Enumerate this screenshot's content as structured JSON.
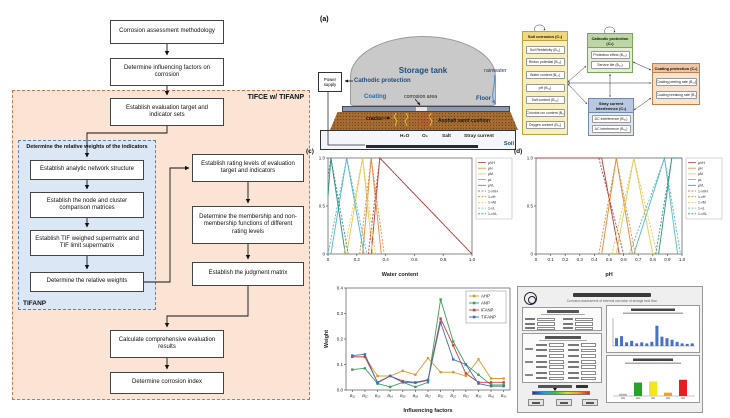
{
  "flowchart": {
    "outer_label": "TIFCE w/ TIFANP",
    "inner_title": "Determine the relative weights of the indicators",
    "inner_label": "TIFANP",
    "nodes": {
      "n1": "Corrosion assessment methodology",
      "n2": "Determine influencing factors on corrosion",
      "n3": "Establish evaluation target and indicator sets",
      "s1": "Establish analytic network structure",
      "s2": "Establish the node and cluster comparison matrices",
      "s3": "Establish TIF weighed supermatrix and TIF limit supermatrix",
      "s4": "Determine the relative weights",
      "r1": "Establish rating levels of evaluation target and indicators",
      "r2": "Determine the membership and non-membership functions of different rating levels",
      "r3": "Establish the judgment matrix",
      "c1": "Calculate comprehensive evaluation results",
      "c2": "Determine corrosion index"
    }
  },
  "tank": {
    "panel_label": "(a)",
    "tank_label": "Storage tank",
    "power_supply": "Power supply",
    "cathodic_protection": "Cathodic protection",
    "coating": "Coating",
    "corrosion_area": "corrosion area",
    "floor": "Floor",
    "rainwater": "rainwater",
    "cracks": "cracks",
    "asphalt": "Asphalt sand cushion",
    "soil": "Soil",
    "species": [
      "H₂O",
      "O₂",
      "Salt",
      "Stray current"
    ]
  },
  "network": {
    "clusters": [
      {
        "title": "Soil corrosion (C₁)",
        "items": [
          "Soil Resistivity (B₁₁)",
          "Redox potential (B₁₂)",
          "Water content (B₁₃)",
          "pH (B₁₄)",
          "Salt content (B₁₅)",
          "Chloride ion content (B₁₆)",
          "Oxygen content (B₁₇)"
        ]
      },
      {
        "title": "Cathodic protection (C₂)",
        "items": [
          "Protection effect (B₂₁)",
          "Service life (B₂₂)"
        ]
      },
      {
        "title": "Stray current Interference (C₃)",
        "items": [
          "DC interference (B₃₁)",
          "AC interference (B₃₂)"
        ]
      },
      {
        "title": "Coating protection (C₄)",
        "items": [
          "Coating peeling rate (B₄₁)",
          "Coating breaking rate (B₄₂)"
        ]
      }
    ]
  },
  "chart_data": [
    {
      "id": "membership-water",
      "type": "line",
      "panel_label": "(c)",
      "xlabel": "Water content",
      "ylabel": "",
      "xlim": [
        0,
        1
      ],
      "ylim": [
        0,
        1
      ],
      "xticks": [
        {
          "v": 0,
          "t": "0"
        },
        {
          "v": 0.2,
          "t": "0.2"
        },
        {
          "v": 0.4,
          "t": "0.4"
        },
        {
          "v": 0.6,
          "t": "0.6"
        },
        {
          "v": 0.8,
          "t": "0.8"
        },
        {
          "v": 1,
          "t": "1.0"
        }
      ],
      "yticks": [
        {
          "v": 0,
          "t": "0"
        },
        {
          "v": 0.5,
          "t": "0.5"
        },
        {
          "v": 1,
          "t": "1.0"
        }
      ],
      "legend_position": "right-outside",
      "series": [
        {
          "name": "μVH",
          "color": "#b5413c",
          "dash": false,
          "points": [
            [
              0.3,
              0
            ],
            [
              0.36,
              1
            ],
            [
              1.0,
              0
            ]
          ]
        },
        {
          "name": "μH",
          "color": "#e08a3c",
          "dash": false,
          "points": [
            [
              0.24,
              0
            ],
            [
              0.3,
              1
            ],
            [
              0.37,
              0
            ]
          ]
        },
        {
          "name": "μM",
          "color": "#e5c952",
          "dash": false,
          "points": [
            [
              0.13,
              0
            ],
            [
              0.24,
              1
            ],
            [
              0.31,
              0
            ]
          ]
        },
        {
          "name": "μL",
          "color": "#57b7c9",
          "dash": false,
          "points": [
            [
              0.02,
              0
            ],
            [
              0.13,
              1
            ],
            [
              0.25,
              0
            ]
          ]
        },
        {
          "name": "μVL",
          "color": "#2f9188",
          "dash": false,
          "points": [
            [
              0,
              0.6
            ],
            [
              0.02,
              1
            ],
            [
              0.12,
              0
            ]
          ]
        },
        {
          "name": "1-νVH",
          "color": "#b5413c",
          "dash": true,
          "points": [
            [
              0.28,
              0
            ],
            [
              0.36,
              1
            ],
            [
              1.0,
              0
            ]
          ]
        },
        {
          "name": "1-νH",
          "color": "#e08a3c",
          "dash": true,
          "points": [
            [
              0.22,
              0
            ],
            [
              0.3,
              1
            ],
            [
              0.39,
              0
            ]
          ]
        },
        {
          "name": "1-νM",
          "color": "#e5c952",
          "dash": true,
          "points": [
            [
              0.11,
              0
            ],
            [
              0.24,
              1
            ],
            [
              0.33,
              0
            ]
          ]
        },
        {
          "name": "1-νL",
          "color": "#57b7c9",
          "dash": true,
          "points": [
            [
              0,
              0
            ],
            [
              0.13,
              1
            ],
            [
              0.27,
              0
            ]
          ]
        },
        {
          "name": "1-νVL",
          "color": "#2f9188",
          "dash": true,
          "points": [
            [
              0,
              0.8
            ],
            [
              0.02,
              1
            ],
            [
              0.14,
              0
            ]
          ]
        }
      ]
    },
    {
      "id": "membership-ph",
      "type": "line",
      "panel_label": "(d)",
      "xlabel": "pH",
      "ylabel": "",
      "xlim": [
        0,
        1
      ],
      "ylim": [
        0,
        1
      ],
      "xticks": [
        {
          "v": 0,
          "t": "0"
        },
        {
          "v": 0.1,
          "t": "0.1"
        },
        {
          "v": 0.2,
          "t": "0.2"
        },
        {
          "v": 0.3,
          "t": "0.3"
        },
        {
          "v": 0.4,
          "t": "0.4"
        },
        {
          "v": 0.5,
          "t": "0.5"
        },
        {
          "v": 0.6,
          "t": "0.6"
        },
        {
          "v": 0.7,
          "t": "0.7"
        },
        {
          "v": 0.8,
          "t": "0.8"
        },
        {
          "v": 0.9,
          "t": "0.9"
        },
        {
          "v": 1,
          "t": "1.0"
        }
      ],
      "yticks": [
        {
          "v": 0,
          "t": "0"
        },
        {
          "v": 0.5,
          "t": "0.5"
        },
        {
          "v": 1,
          "t": "1.0"
        }
      ],
      "legend_position": "right-outside",
      "series": [
        {
          "name": "μVH",
          "color": "#b5413c",
          "dash": false,
          "points": [
            [
              0,
              1
            ],
            [
              0.45,
              1
            ],
            [
              0.57,
              0
            ]
          ]
        },
        {
          "name": "μH",
          "color": "#e08a3c",
          "dash": false,
          "points": [
            [
              0.45,
              0
            ],
            [
              0.55,
              1
            ],
            [
              0.66,
              0
            ]
          ]
        },
        {
          "name": "μM",
          "color": "#e5c952",
          "dash": false,
          "points": [
            [
              0.55,
              0
            ],
            [
              0.67,
              1
            ],
            [
              0.8,
              0
            ]
          ]
        },
        {
          "name": "μL",
          "color": "#57b7c9",
          "dash": false,
          "points": [
            [
              0.67,
              0
            ],
            [
              0.88,
              1
            ],
            [
              0.97,
              0
            ]
          ]
        },
        {
          "name": "μVL",
          "color": "#2f9188",
          "dash": false,
          "points": [
            [
              0.84,
              0
            ],
            [
              0.93,
              1
            ],
            [
              1,
              1
            ]
          ]
        },
        {
          "name": "1-νVH",
          "color": "#b5413c",
          "dash": true,
          "points": [
            [
              0,
              1
            ],
            [
              0.43,
              1
            ],
            [
              0.6,
              0
            ]
          ]
        },
        {
          "name": "1-νH",
          "color": "#e08a3c",
          "dash": true,
          "points": [
            [
              0.43,
              0
            ],
            [
              0.55,
              1
            ],
            [
              0.68,
              0
            ]
          ]
        },
        {
          "name": "1-νM",
          "color": "#e5c952",
          "dash": true,
          "points": [
            [
              0.52,
              0
            ],
            [
              0.67,
              1
            ],
            [
              0.83,
              0
            ]
          ]
        },
        {
          "name": "1-νL",
          "color": "#57b7c9",
          "dash": true,
          "points": [
            [
              0.64,
              0
            ],
            [
              0.88,
              1
            ],
            [
              0.99,
              0
            ]
          ]
        },
        {
          "name": "1-νVL",
          "color": "#2f9188",
          "dash": true,
          "points": [
            [
              0.82,
              0
            ],
            [
              0.93,
              1
            ],
            [
              1,
              1
            ]
          ]
        }
      ]
    },
    {
      "id": "weights-comparison",
      "type": "line",
      "panel_label": "",
      "xlabel": "Influencing factors",
      "ylabel": "Weight",
      "categories": [
        "B₁₁",
        "B₁₂",
        "B₁₃",
        "B₁₄",
        "B₁₅",
        "B₁₆",
        "B₁₇",
        "B₂₁",
        "B₂₂",
        "B₃₁",
        "B₃₂",
        "B₄₁",
        "B₄₂"
      ],
      "ylim": [
        0,
        0.4
      ],
      "yticks": [
        {
          "v": 0,
          "t": "0.0"
        },
        {
          "v": 0.1,
          "t": "0.1"
        },
        {
          "v": 0.2,
          "t": "0.2"
        },
        {
          "v": 0.3,
          "t": "0.3"
        },
        {
          "v": 0.4,
          "t": "0.4"
        }
      ],
      "legend_position": "inside-topright",
      "markers": true,
      "series": [
        {
          "name": "AHP",
          "color": "#d79b2f",
          "values": [
            0.13,
            0.13,
            0.055,
            0.055,
            0.075,
            0.06,
            0.125,
            0.07,
            0.07,
            0.055,
            0.12,
            0.045,
            0.045
          ]
        },
        {
          "name": "ANP",
          "color": "#3f9e5f",
          "values": [
            0.08,
            0.085,
            0.025,
            0.012,
            0.03,
            0.012,
            0.03,
            0.355,
            0.19,
            0.1,
            0.06,
            0.02,
            0.02
          ]
        },
        {
          "name": "IFANP",
          "color": "#cc4437",
          "values": [
            0.13,
            0.13,
            0.03,
            0.055,
            0.035,
            0.03,
            0.04,
            0.28,
            0.175,
            0.065,
            0.03,
            0.03,
            0.03
          ]
        },
        {
          "name": "TIFANP",
          "color": "#3b6fc0",
          "values": [
            0.135,
            0.14,
            0.028,
            0.055,
            0.03,
            0.028,
            0.038,
            0.265,
            0.12,
            0.1,
            0.025,
            0.015,
            0.015
          ]
        }
      ]
    }
  ],
  "interface": {
    "subtitle": "Corrosion assessment of external corrosion of storage tank floor",
    "weight_bars": [
      0.3,
      0.38,
      0.14,
      0.2,
      0.1,
      0.14,
      0.1,
      0.16,
      0.78,
      0.36,
      0.3,
      0.24,
      0.16,
      0.1,
      0.08,
      0.1
    ],
    "grade_bars": [
      {
        "color": "#b8b8b8",
        "value": 0.08
      },
      {
        "color": "#28a228",
        "value": 0.48
      },
      {
        "color": "#f2e51e",
        "value": 0.52
      },
      {
        "color": "#f2a21e",
        "value": 0.12
      },
      {
        "color": "#e81e1e",
        "value": 0.58
      }
    ],
    "gradient_marker": 0.4
  }
}
